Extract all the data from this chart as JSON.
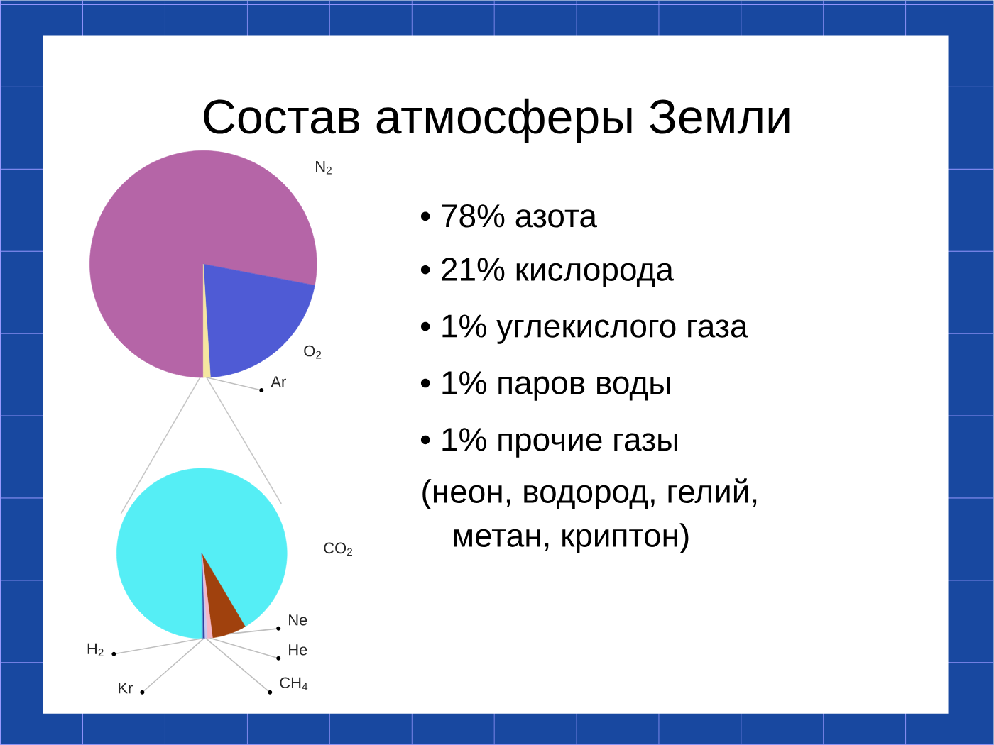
{
  "chart_data": [
    {
      "type": "pie",
      "title": "Состав атмосферы Земли",
      "categories": [
        "N$_{2}$",
        "O$_{2}$",
        "Ar"
      ],
      "values": [
        78,
        21,
        1
      ],
      "colors": [
        "#b565a7",
        "#4f5bd5",
        "#f5e6a0"
      ],
      "annotations": [
        "• 78% азота",
        "• 21% кислорода",
        "• 1% углекислого газа",
        "• 1% паров воды",
        "• 1% прочие газы",
        "(неон, водород, гелий, метан, криптон)"
      ]
    },
    {
      "type": "pie",
      "categories": [
        "CO$_{2}$",
        "Ne",
        "He",
        "CH$_{4}$",
        "Kr",
        "H$_{2}$"
      ],
      "values": [
        91.5,
        6.5,
        1,
        0.5,
        0.3,
        0.2
      ],
      "colors": [
        "#55eef5",
        "#a0410d",
        "#f4b6c8",
        "#c8c8f0",
        "#2a3a9c",
        "#5b9bd5"
      ]
    }
  ]
}
